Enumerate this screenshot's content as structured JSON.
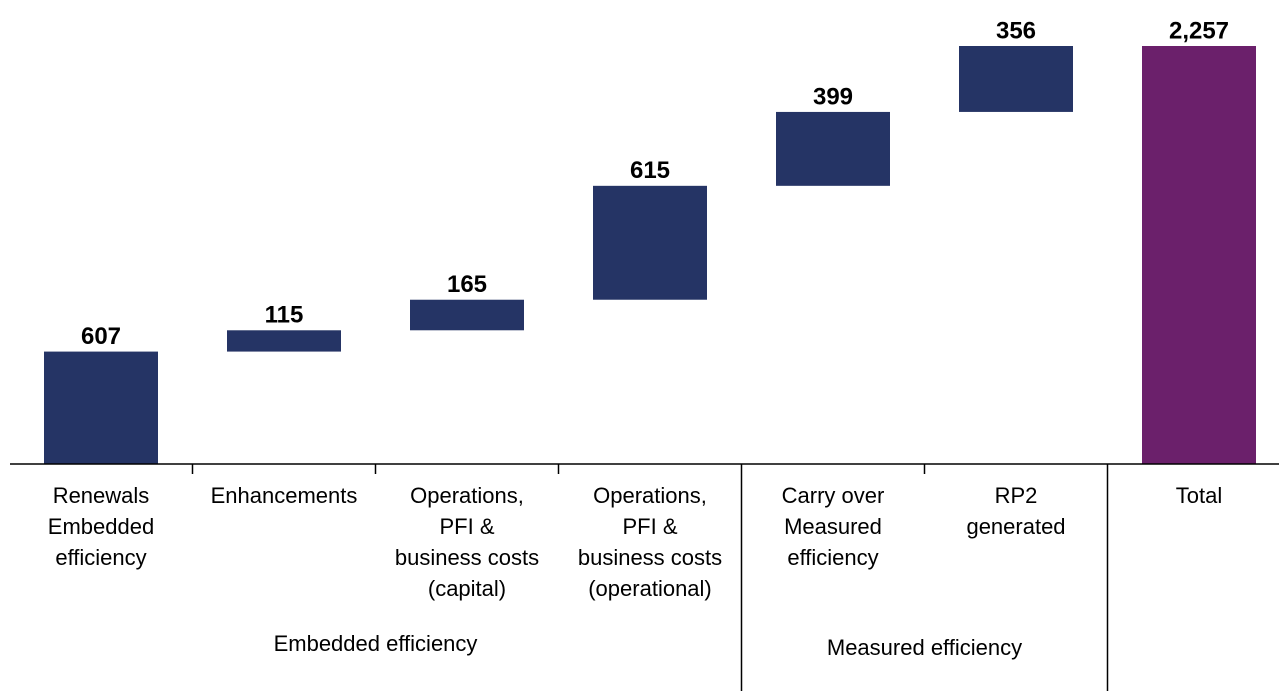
{
  "chart_data": {
    "type": "waterfall",
    "categories": [
      [
        "Renewals",
        "Embedded",
        "efficiency"
      ],
      [
        "Enhancements"
      ],
      [
        "Operations,",
        "PFI &",
        "business costs",
        "(capital)"
      ],
      [
        "Operations,",
        "PFI &",
        "business costs",
        "(operational)"
      ],
      [
        "Carry over",
        "Measured",
        "efficiency"
      ],
      [
        "RP2",
        "generated"
      ],
      [
        "Total"
      ]
    ],
    "values": [
      607,
      115,
      165,
      615,
      399,
      356,
      2257
    ],
    "value_labels": [
      "607",
      "115",
      "165",
      "615",
      "399",
      "356",
      "2,257"
    ],
    "colors": [
      "#253465",
      "#253465",
      "#253465",
      "#253465",
      "#253465",
      "#253465",
      "#6b206b"
    ],
    "total_index": 6,
    "groups": [
      {
        "label": "Embedded  efficiency",
        "start": 0,
        "end": 3
      },
      {
        "label": "Measured efficiency",
        "start": 4,
        "end": 5
      }
    ]
  }
}
